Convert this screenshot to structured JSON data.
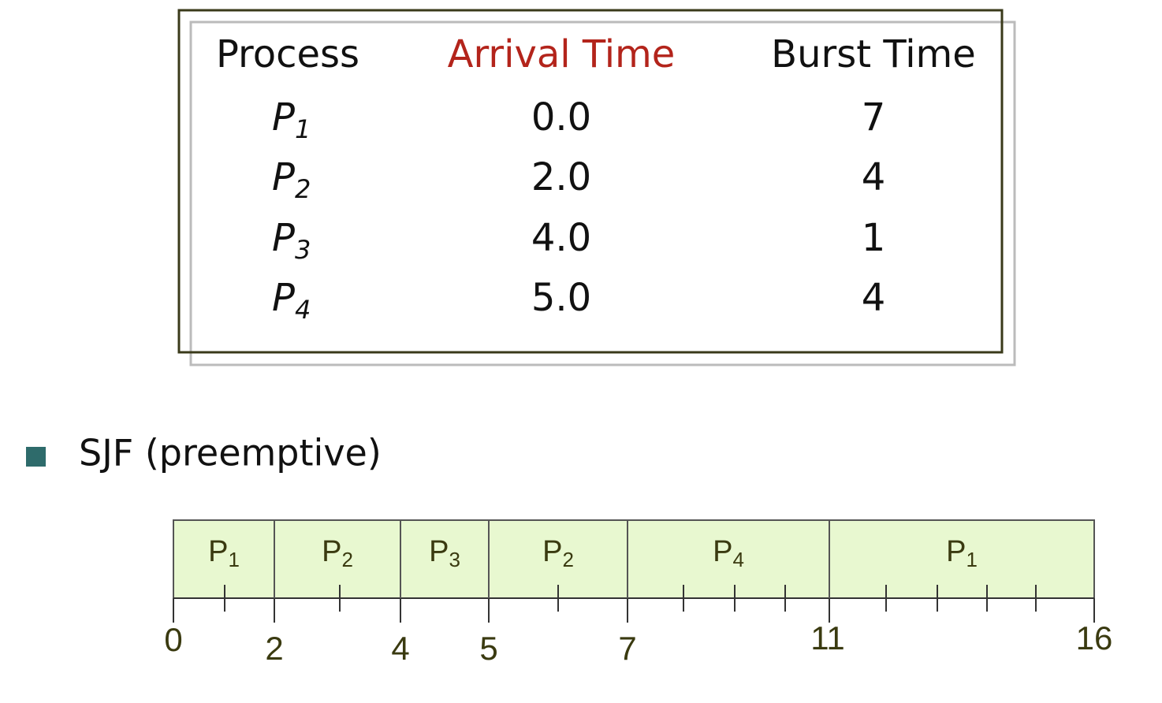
{
  "table": {
    "header": [
      "Process",
      "Arrival Time",
      "Burst Time"
    ],
    "rows": [
      {
        "process": "P",
        "sub": "1",
        "arrival": "0.0",
        "burst": "7"
      },
      {
        "process": "P",
        "sub": "2",
        "arrival": "2.0",
        "burst": "4"
      },
      {
        "process": "P",
        "sub": "3",
        "arrival": "4.0",
        "burst": "1"
      },
      {
        "process": "P",
        "sub": "4",
        "arrival": "5.0",
        "burst": "4"
      }
    ]
  },
  "bullet": "SJF (preemptive)",
  "gantt": {
    "segments": [
      {
        "label": "P",
        "sub": "1"
      },
      {
        "label": "P",
        "sub": "2"
      },
      {
        "label": "P",
        "sub": "3"
      },
      {
        "label": "P",
        "sub": "2"
      },
      {
        "label": "P",
        "sub": "4"
      },
      {
        "label": "P",
        "sub": "1"
      }
    ],
    "times": [
      "0",
      "2",
      "4",
      "5",
      "7",
      "11",
      "16"
    ]
  }
}
